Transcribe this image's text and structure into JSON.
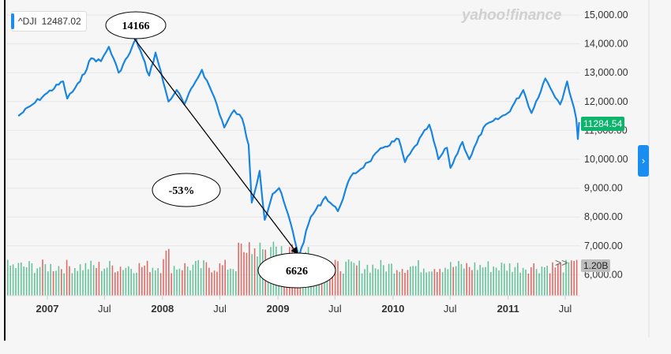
{
  "ticker": {
    "symbol": "^DJI",
    "value": "12487.02"
  },
  "brand": "yahoo!finance",
  "last_price": "11284.54",
  "volume_label": "1.20B",
  "expand_icon": "double-chevron-right-icon",
  "nav_icon": "chevron-right-icon",
  "colors": {
    "line": "#1a85e0",
    "vol_up": "#4fb98c",
    "vol_down": "#d9534f",
    "accent": "#1a8df0",
    "last": "#0bb56c"
  },
  "annotations": {
    "peak": "14166",
    "trough": "6626",
    "drop": "-53%"
  },
  "chart_data": {
    "type": "line",
    "x_range": [
      "2006-10",
      "2011-08"
    ],
    "ylim": [
      5500,
      15250
    ],
    "y_ticks": [
      "15,000.00",
      "14,000.00",
      "13,000.00",
      "12,000.00",
      "11,000.00",
      "10,000.00",
      "9,000.00",
      "8,000.00",
      "7,000.00",
      "6,000.00"
    ],
    "x_ticks": [
      {
        "label": "2007",
        "date": "2007-01",
        "year": true
      },
      {
        "label": "Jul",
        "date": "2007-07",
        "year": false
      },
      {
        "label": "2008",
        "date": "2008-01",
        "year": true
      },
      {
        "label": "Jul",
        "date": "2008-07",
        "year": false
      },
      {
        "label": "2009",
        "date": "2009-01",
        "year": true
      },
      {
        "label": "Jul",
        "date": "2009-07",
        "year": false
      },
      {
        "label": "2010",
        "date": "2010-01",
        "year": true
      },
      {
        "label": "Jul",
        "date": "2010-07",
        "year": false
      },
      {
        "label": "2011",
        "date": "2011-01",
        "year": true
      },
      {
        "label": "Jul",
        "date": "2011-07",
        "year": false
      }
    ],
    "grid": true,
    "series": [
      {
        "points": [
          [
            "2006-10-01",
            11500
          ],
          [
            "2006-11-15",
            11900
          ],
          [
            "2007-01-01",
            12300
          ],
          [
            "2007-02-20",
            12700
          ],
          [
            "2007-03-05",
            12100
          ],
          [
            "2007-04-15",
            12700
          ],
          [
            "2007-05-20",
            13500
          ],
          [
            "2007-06-20",
            13400
          ],
          [
            "2007-07-15",
            13900
          ],
          [
            "2007-08-15",
            13000
          ],
          [
            "2007-09-20",
            13700
          ],
          [
            "2007-10-09",
            14166
          ],
          [
            "2007-11-20",
            12900
          ],
          [
            "2007-12-10",
            13700
          ],
          [
            "2008-01-20",
            12000
          ],
          [
            "2008-02-15",
            12400
          ],
          [
            "2008-03-10",
            11900
          ],
          [
            "2008-04-15",
            12700
          ],
          [
            "2008-05-05",
            13100
          ],
          [
            "2008-06-15",
            12100
          ],
          [
            "2008-07-15",
            11100
          ],
          [
            "2008-08-15",
            11700
          ],
          [
            "2008-09-10",
            11400
          ],
          [
            "2008-09-30",
            10500
          ],
          [
            "2008-10-10",
            8500
          ],
          [
            "2008-11-04",
            9600
          ],
          [
            "2008-11-20",
            7900
          ],
          [
            "2008-12-15",
            8800
          ],
          [
            "2009-01-05",
            9000
          ],
          [
            "2009-02-10",
            7800
          ],
          [
            "2009-03-09",
            6626
          ],
          [
            "2009-04-15",
            8000
          ],
          [
            "2009-06-01",
            8700
          ],
          [
            "2009-07-10",
            8200
          ],
          [
            "2009-08-20",
            9400
          ],
          [
            "2009-10-15",
            9900
          ],
          [
            "2009-11-30",
            10400
          ],
          [
            "2010-01-19",
            10700
          ],
          [
            "2010-02-08",
            9900
          ],
          [
            "2010-04-26",
            11200
          ],
          [
            "2010-05-25",
            10000
          ],
          [
            "2010-06-21",
            10400
          ],
          [
            "2010-07-02",
            9700
          ],
          [
            "2010-08-09",
            10600
          ],
          [
            "2010-08-31",
            10000
          ],
          [
            "2010-10-15",
            11100
          ],
          [
            "2010-12-31",
            11600
          ],
          [
            "2011-02-18",
            12400
          ],
          [
            "2011-03-16",
            11600
          ],
          [
            "2011-04-29",
            12800
          ],
          [
            "2011-06-15",
            11900
          ],
          [
            "2011-07-07",
            12700
          ],
          [
            "2011-08-05",
            11400
          ],
          [
            "2011-08-10",
            10700
          ],
          [
            "2011-08-14",
            11284.54
          ]
        ]
      }
    ]
  }
}
